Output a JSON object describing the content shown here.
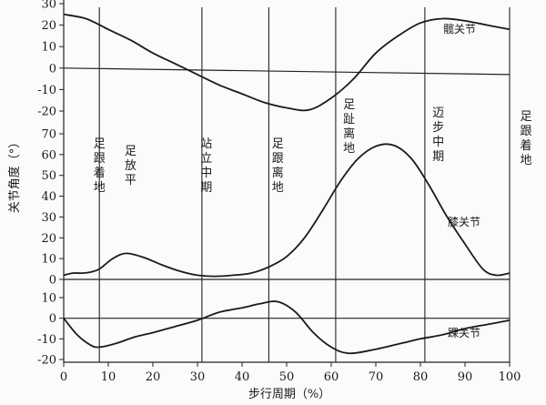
{
  "chart_data": {
    "type": "line",
    "xlabel": "步行周期（%）",
    "ylabel": "关节角度（°）",
    "x_ticks": [
      "0",
      "10",
      "20",
      "30",
      "40",
      "50",
      "60",
      "70",
      "80",
      "90",
      "100"
    ],
    "xlim": [
      0,
      100
    ],
    "phases": [
      {
        "x": 8,
        "label": "足跟着地"
      },
      {
        "x": 15,
        "label": "足放平"
      },
      {
        "x": 32,
        "label": "站立中期"
      },
      {
        "x": 48,
        "label": "足跟离地"
      },
      {
        "x": 64,
        "label": "足趾离地"
      },
      {
        "x": 84,
        "label": "迈步中期"
      },
      {
        "x": 104,
        "label": "足跟着地"
      }
    ],
    "vlines_x": [
      8,
      31,
      46,
      61,
      81,
      100
    ],
    "panels": [
      {
        "name": "髋关节",
        "ylim": [
          -20,
          30
        ],
        "y_ticks": [
          "30",
          "20",
          "10",
          "0",
          "-10",
          "-20"
        ],
        "baseline": [
          [
            0,
            0
          ],
          [
            100,
            -3
          ]
        ],
        "x": [
          0,
          5,
          10,
          15,
          20,
          25,
          30,
          35,
          40,
          45,
          50,
          55,
          60,
          65,
          70,
          75,
          80,
          85,
          90,
          95,
          100
        ],
        "values": [
          25,
          23,
          18,
          13,
          7,
          2,
          -3,
          -8,
          -12,
          -16,
          -18.5,
          -19.5,
          -14,
          -5,
          7,
          15,
          21,
          23,
          22,
          20,
          18
        ]
      },
      {
        "name": "膝关节",
        "ylim": [
          0,
          70
        ],
        "y_ticks": [
          "70",
          "60",
          "50",
          "40",
          "30",
          "20",
          "10",
          "0"
        ],
        "baseline": [
          [
            0,
            0
          ],
          [
            100,
            0
          ]
        ],
        "x": [
          0,
          2,
          4,
          6,
          8,
          11,
          14,
          18,
          22,
          26,
          30,
          34,
          38,
          42,
          46,
          50,
          54,
          58,
          62,
          66,
          70,
          74,
          78,
          82,
          86,
          90,
          94,
          97,
          100
        ],
        "values": [
          2,
          3,
          3,
          3.5,
          5,
          10,
          12.5,
          10.5,
          7,
          4,
          2,
          1.5,
          2,
          3,
          6,
          11,
          20,
          33,
          47,
          58,
          64,
          64.5,
          58,
          45,
          30,
          17,
          5,
          2,
          3
        ]
      },
      {
        "name": "踝关节",
        "ylim": [
          -20,
          10
        ],
        "y_ticks": [
          "10",
          "0",
          "-10",
          "-20"
        ],
        "baseline": [
          [
            0,
            0
          ],
          [
            100,
            0
          ]
        ],
        "x": [
          0,
          3,
          6,
          8,
          12,
          16,
          20,
          25,
          30,
          35,
          40,
          44,
          48,
          52,
          56,
          60,
          64,
          70,
          76,
          80,
          85,
          90,
          95,
          100
        ],
        "values": [
          0,
          -8,
          -13,
          -14,
          -12,
          -9,
          -7,
          -4,
          -1,
          3,
          5,
          7,
          8,
          3,
          -7,
          -14,
          -17,
          -15,
          -12,
          -10,
          -8,
          -5,
          -3,
          -1
        ]
      }
    ]
  }
}
